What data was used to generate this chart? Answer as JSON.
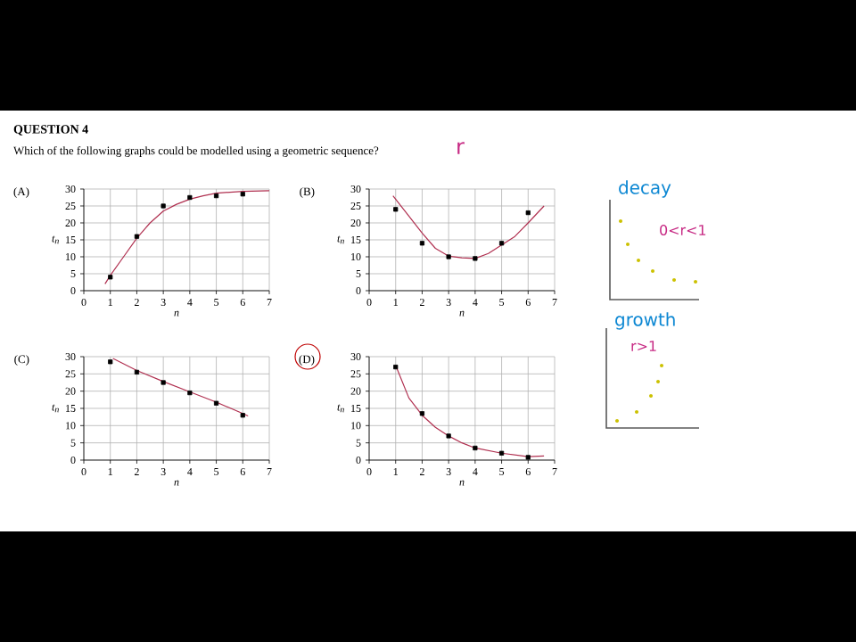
{
  "chart_data": [
    {
      "type": "other",
      "title": "QUESTION 4",
      "subtitle": "Which of the following graphs could be modelled using a geometric sequence?",
      "annotations": [
        "r",
        "decay",
        "0<r<1",
        "growth",
        "r>1"
      ]
    },
    {
      "type": "scatter",
      "title": "(A)",
      "xlabel": "n",
      "ylabel": "t$_{n}$",
      "xlim": [
        0,
        7
      ],
      "ylim": [
        0,
        30
      ],
      "xticks": [
        0,
        1,
        2,
        3,
        4,
        5,
        6,
        7
      ],
      "yticks": [
        0,
        5,
        10,
        15,
        20,
        25,
        30
      ],
      "grid": true,
      "series": [
        {
          "type": "scatter",
          "marker": "square",
          "color": "#000000",
          "x": [
            1,
            2,
            3,
            4,
            5,
            6
          ],
          "values": [
            4,
            16,
            25,
            27.5,
            28,
            28.5
          ]
        },
        {
          "type": "line",
          "color": "#b03050",
          "x": [
            0.8,
            1,
            1.5,
            2,
            2.5,
            3,
            3.5,
            4,
            4.5,
            5,
            6,
            7
          ],
          "values": [
            2,
            4.5,
            10,
            15.5,
            20,
            23.5,
            25.5,
            27,
            28,
            28.8,
            29.3,
            29.5
          ]
        }
      ]
    },
    {
      "type": "scatter",
      "title": "(B)",
      "xlabel": "n",
      "ylabel": "t$_{n}$",
      "xlim": [
        0,
        7
      ],
      "ylim": [
        0,
        30
      ],
      "xticks": [
        0,
        1,
        2,
        3,
        4,
        5,
        6,
        7
      ],
      "yticks": [
        0,
        5,
        10,
        15,
        20,
        25,
        30
      ],
      "grid": true,
      "series": [
        {
          "type": "scatter",
          "marker": "square",
          "color": "#000000",
          "x": [
            1,
            2,
            3,
            4,
            5,
            6
          ],
          "values": [
            24,
            14,
            10,
            9.5,
            14,
            23
          ]
        },
        {
          "type": "line",
          "color": "#b03050",
          "x": [
            0.9,
            1.5,
            2,
            2.5,
            3,
            3.5,
            4,
            4.5,
            5,
            5.5,
            6,
            6.6
          ],
          "values": [
            28,
            22,
            17,
            12.5,
            10.2,
            9.7,
            9.5,
            11,
            13.5,
            16,
            20,
            25
          ]
        }
      ]
    },
    {
      "type": "scatter",
      "title": "(C)",
      "xlabel": "n",
      "ylabel": "t$_{n}$",
      "xlim": [
        0,
        7
      ],
      "ylim": [
        0,
        30
      ],
      "xticks": [
        0,
        1,
        2,
        3,
        4,
        5,
        6,
        7
      ],
      "yticks": [
        0,
        5,
        10,
        15,
        20,
        25,
        30
      ],
      "grid": true,
      "series": [
        {
          "type": "scatter",
          "marker": "square",
          "color": "#000000",
          "x": [
            1,
            2,
            3,
            4,
            5,
            6
          ],
          "values": [
            28.5,
            25.5,
            22.5,
            19.5,
            16.5,
            13
          ]
        },
        {
          "type": "line",
          "color": "#b03050",
          "x": [
            1.1,
            2,
            3,
            4,
            5,
            6,
            6.2
          ],
          "values": [
            29.5,
            26,
            22.8,
            19.8,
            16.8,
            13.5,
            12.8
          ]
        }
      ]
    },
    {
      "type": "scatter",
      "title": "(D)",
      "xlabel": "n",
      "ylabel": "t$_{n}$",
      "xlim": [
        0,
        7
      ],
      "ylim": [
        0,
        30
      ],
      "xticks": [
        0,
        1,
        2,
        3,
        4,
        5,
        6,
        7
      ],
      "yticks": [
        0,
        5,
        10,
        15,
        20,
        25,
        30
      ],
      "grid": true,
      "series": [
        {
          "type": "scatter",
          "marker": "square",
          "color": "#000000",
          "x": [
            1,
            2,
            3,
            4,
            5,
            6
          ],
          "values": [
            27,
            13.5,
            7,
            3.5,
            2,
            0.8
          ]
        },
        {
          "type": "line",
          "color": "#b03050",
          "x": [
            1,
            1.5,
            2,
            2.5,
            3,
            3.5,
            4,
            5,
            6,
            6.6
          ],
          "values": [
            27.5,
            18,
            13,
            9.5,
            7,
            5,
            3.5,
            2,
            1,
            1.2
          ]
        }
      ]
    }
  ]
}
